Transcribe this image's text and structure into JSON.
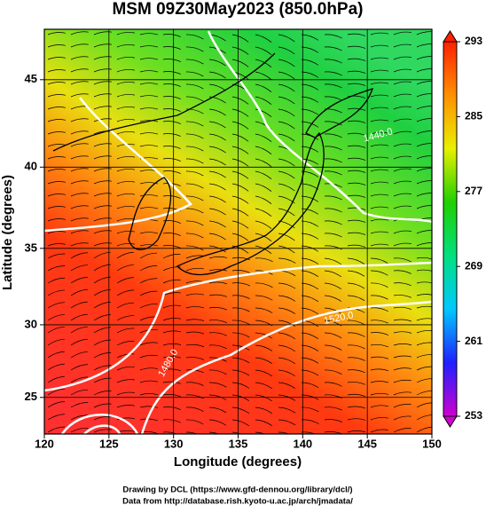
{
  "chart_data": {
    "type": "map",
    "title": "MSM 09Z30May2023 (850.0hPa)",
    "xlabel": "Longitude (degrees)",
    "ylabel": "Latitude  (degrees)",
    "projection": "mercator",
    "xlim": [
      120,
      150
    ],
    "xticks": [
      120,
      125,
      130,
      135,
      140,
      145,
      150
    ],
    "ylim": [
      22.4,
      47.7
    ],
    "yticks": [
      25,
      30,
      35,
      40,
      45
    ],
    "grid": true,
    "colorbar": {
      "lim": [
        253,
        293
      ],
      "ticks": [
        253,
        261,
        269,
        277,
        285,
        293
      ],
      "colors": [
        "#d000d0",
        "#2020ff",
        "#00c8ff",
        "#00e080",
        "#20d000",
        "#e8f000",
        "#ff9000",
        "#ff2000"
      ]
    },
    "contour_labels": [
      "1440.0",
      "1480.0",
      "1520.0"
    ],
    "footer": [
      "Drawing by DCL (https://www.gfd-dennou.org/library/dcl/)",
      "Data from http://database.rish.kyoto-u.ac.jp/arch/jmadata/"
    ]
  }
}
